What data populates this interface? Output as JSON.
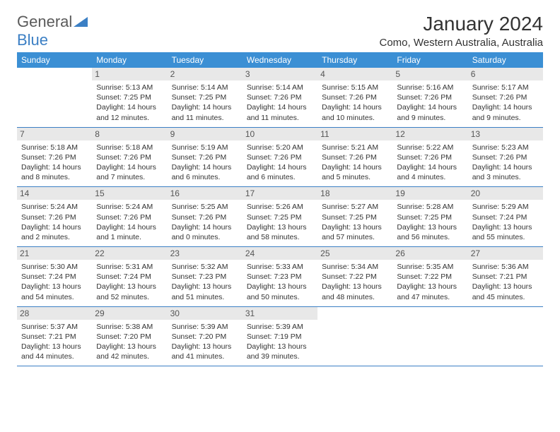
{
  "brand": {
    "part1": "General",
    "part2": "Blue"
  },
  "title": "January 2024",
  "location": "Como, Western Australia, Australia",
  "colors": {
    "header_bg": "#3b8fd4",
    "accent": "#3b7fc4",
    "daynum_bg": "#e8e8e8",
    "text": "#333333",
    "page_bg": "#ffffff"
  },
  "typography": {
    "base_fontsize": 10.5,
    "title_fontsize": 28,
    "location_fontsize": 15,
    "dayhead_fontsize": 12
  },
  "days": [
    "Sunday",
    "Monday",
    "Tuesday",
    "Wednesday",
    "Thursday",
    "Friday",
    "Saturday"
  ],
  "weeks": [
    [
      null,
      {
        "n": "1",
        "sr": "Sunrise: 5:13 AM",
        "ss": "Sunset: 7:25 PM",
        "d1": "Daylight: 14 hours",
        "d2": "and 12 minutes."
      },
      {
        "n": "2",
        "sr": "Sunrise: 5:14 AM",
        "ss": "Sunset: 7:25 PM",
        "d1": "Daylight: 14 hours",
        "d2": "and 11 minutes."
      },
      {
        "n": "3",
        "sr": "Sunrise: 5:14 AM",
        "ss": "Sunset: 7:26 PM",
        "d1": "Daylight: 14 hours",
        "d2": "and 11 minutes."
      },
      {
        "n": "4",
        "sr": "Sunrise: 5:15 AM",
        "ss": "Sunset: 7:26 PM",
        "d1": "Daylight: 14 hours",
        "d2": "and 10 minutes."
      },
      {
        "n": "5",
        "sr": "Sunrise: 5:16 AM",
        "ss": "Sunset: 7:26 PM",
        "d1": "Daylight: 14 hours",
        "d2": "and 9 minutes."
      },
      {
        "n": "6",
        "sr": "Sunrise: 5:17 AM",
        "ss": "Sunset: 7:26 PM",
        "d1": "Daylight: 14 hours",
        "d2": "and 9 minutes."
      }
    ],
    [
      {
        "n": "7",
        "sr": "Sunrise: 5:18 AM",
        "ss": "Sunset: 7:26 PM",
        "d1": "Daylight: 14 hours",
        "d2": "and 8 minutes."
      },
      {
        "n": "8",
        "sr": "Sunrise: 5:18 AM",
        "ss": "Sunset: 7:26 PM",
        "d1": "Daylight: 14 hours",
        "d2": "and 7 minutes."
      },
      {
        "n": "9",
        "sr": "Sunrise: 5:19 AM",
        "ss": "Sunset: 7:26 PM",
        "d1": "Daylight: 14 hours",
        "d2": "and 6 minutes."
      },
      {
        "n": "10",
        "sr": "Sunrise: 5:20 AM",
        "ss": "Sunset: 7:26 PM",
        "d1": "Daylight: 14 hours",
        "d2": "and 6 minutes."
      },
      {
        "n": "11",
        "sr": "Sunrise: 5:21 AM",
        "ss": "Sunset: 7:26 PM",
        "d1": "Daylight: 14 hours",
        "d2": "and 5 minutes."
      },
      {
        "n": "12",
        "sr": "Sunrise: 5:22 AM",
        "ss": "Sunset: 7:26 PM",
        "d1": "Daylight: 14 hours",
        "d2": "and 4 minutes."
      },
      {
        "n": "13",
        "sr": "Sunrise: 5:23 AM",
        "ss": "Sunset: 7:26 PM",
        "d1": "Daylight: 14 hours",
        "d2": "and 3 minutes."
      }
    ],
    [
      {
        "n": "14",
        "sr": "Sunrise: 5:24 AM",
        "ss": "Sunset: 7:26 PM",
        "d1": "Daylight: 14 hours",
        "d2": "and 2 minutes."
      },
      {
        "n": "15",
        "sr": "Sunrise: 5:24 AM",
        "ss": "Sunset: 7:26 PM",
        "d1": "Daylight: 14 hours",
        "d2": "and 1 minute."
      },
      {
        "n": "16",
        "sr": "Sunrise: 5:25 AM",
        "ss": "Sunset: 7:26 PM",
        "d1": "Daylight: 14 hours",
        "d2": "and 0 minutes."
      },
      {
        "n": "17",
        "sr": "Sunrise: 5:26 AM",
        "ss": "Sunset: 7:25 PM",
        "d1": "Daylight: 13 hours",
        "d2": "and 58 minutes."
      },
      {
        "n": "18",
        "sr": "Sunrise: 5:27 AM",
        "ss": "Sunset: 7:25 PM",
        "d1": "Daylight: 13 hours",
        "d2": "and 57 minutes."
      },
      {
        "n": "19",
        "sr": "Sunrise: 5:28 AM",
        "ss": "Sunset: 7:25 PM",
        "d1": "Daylight: 13 hours",
        "d2": "and 56 minutes."
      },
      {
        "n": "20",
        "sr": "Sunrise: 5:29 AM",
        "ss": "Sunset: 7:24 PM",
        "d1": "Daylight: 13 hours",
        "d2": "and 55 minutes."
      }
    ],
    [
      {
        "n": "21",
        "sr": "Sunrise: 5:30 AM",
        "ss": "Sunset: 7:24 PM",
        "d1": "Daylight: 13 hours",
        "d2": "and 54 minutes."
      },
      {
        "n": "22",
        "sr": "Sunrise: 5:31 AM",
        "ss": "Sunset: 7:24 PM",
        "d1": "Daylight: 13 hours",
        "d2": "and 52 minutes."
      },
      {
        "n": "23",
        "sr": "Sunrise: 5:32 AM",
        "ss": "Sunset: 7:23 PM",
        "d1": "Daylight: 13 hours",
        "d2": "and 51 minutes."
      },
      {
        "n": "24",
        "sr": "Sunrise: 5:33 AM",
        "ss": "Sunset: 7:23 PM",
        "d1": "Daylight: 13 hours",
        "d2": "and 50 minutes."
      },
      {
        "n": "25",
        "sr": "Sunrise: 5:34 AM",
        "ss": "Sunset: 7:22 PM",
        "d1": "Daylight: 13 hours",
        "d2": "and 48 minutes."
      },
      {
        "n": "26",
        "sr": "Sunrise: 5:35 AM",
        "ss": "Sunset: 7:22 PM",
        "d1": "Daylight: 13 hours",
        "d2": "and 47 minutes."
      },
      {
        "n": "27",
        "sr": "Sunrise: 5:36 AM",
        "ss": "Sunset: 7:21 PM",
        "d1": "Daylight: 13 hours",
        "d2": "and 45 minutes."
      }
    ],
    [
      {
        "n": "28",
        "sr": "Sunrise: 5:37 AM",
        "ss": "Sunset: 7:21 PM",
        "d1": "Daylight: 13 hours",
        "d2": "and 44 minutes."
      },
      {
        "n": "29",
        "sr": "Sunrise: 5:38 AM",
        "ss": "Sunset: 7:20 PM",
        "d1": "Daylight: 13 hours",
        "d2": "and 42 minutes."
      },
      {
        "n": "30",
        "sr": "Sunrise: 5:39 AM",
        "ss": "Sunset: 7:20 PM",
        "d1": "Daylight: 13 hours",
        "d2": "and 41 minutes."
      },
      {
        "n": "31",
        "sr": "Sunrise: 5:39 AM",
        "ss": "Sunset: 7:19 PM",
        "d1": "Daylight: 13 hours",
        "d2": "and 39 minutes."
      },
      null,
      null,
      null
    ]
  ]
}
